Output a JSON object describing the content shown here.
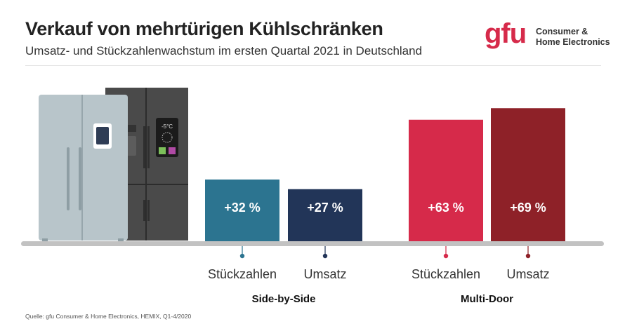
{
  "header": {
    "title": "Verkauf von mehrtürigen Kühlschränken",
    "subtitle": "Umsatz- und Stückzahlenwachstum im ersten Quartal 2021 in Deutschland"
  },
  "logo": {
    "mark": "gfu",
    "line1": "Consumer &",
    "line2": "Home Electronics"
  },
  "fridge_display": {
    "temperature": "-5°C"
  },
  "footer": {
    "source": "Quelle: gfu Consumer & Home Electronics, HEMIX, Q1-4/2020"
  },
  "colors": {
    "side_stueck": "#2c7490",
    "side_umsatz": "#223558",
    "multi_stueck": "#d62a4a",
    "multi_umsatz": "#8e2128",
    "baseline": "#c2c2c2"
  },
  "chart_data": {
    "type": "bar",
    "title": "Verkauf von mehrtürigen Kühlschränken",
    "subtitle": "Umsatz- und Stückzahlenwachstum im ersten Quartal 2021 in Deutschland",
    "unit": "%",
    "groups": [
      {
        "name": "Side-by-Side",
        "bars": [
          {
            "label": "Stückzahlen",
            "value": 32,
            "value_label": "+32 %",
            "color": "#2c7490"
          },
          {
            "label": "Umsatz",
            "value": 27,
            "value_label": "+27 %",
            "color": "#223558"
          }
        ]
      },
      {
        "name": "Multi-Door",
        "bars": [
          {
            "label": "Stückzahlen",
            "value": 63,
            "value_label": "+63 %",
            "color": "#d62a4a"
          },
          {
            "label": "Umsatz",
            "value": 69,
            "value_label": "+69 %",
            "color": "#8e2128"
          }
        ]
      }
    ],
    "ylim": [
      0,
      100
    ],
    "grid": false,
    "legend": "none"
  }
}
